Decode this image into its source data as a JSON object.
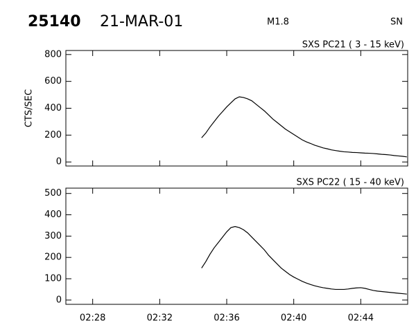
{
  "header": {
    "id": "25140",
    "date": "21-MAR-01",
    "class": "M1.8",
    "station": "SN"
  },
  "chart_data": [
    {
      "type": "line",
      "title": "SXS PC21 ( 3 - 15 keV)",
      "y_label": "CTS/SEC",
      "color": "#000000",
      "xlim": [
        146.4,
        166.8
      ],
      "xticks": [
        148,
        152,
        156,
        160,
        164
      ],
      "ylim": [
        -30,
        830
      ],
      "yticks": [
        0,
        200,
        400,
        600,
        800
      ],
      "x": [
        154.5,
        154.75,
        155,
        155.25,
        155.5,
        155.75,
        156,
        156.25,
        156.5,
        156.75,
        157,
        157.25,
        157.5,
        157.75,
        158,
        158.25,
        158.5,
        158.75,
        159,
        159.25,
        159.5,
        159.75,
        160,
        160.25,
        160.5,
        160.75,
        161,
        161.25,
        161.5,
        161.75,
        162,
        162.25,
        162.5,
        162.75,
        163,
        163.25,
        163.5,
        163.75,
        164,
        164.25,
        164.5,
        164.75,
        165,
        165.25,
        165.5,
        165.75,
        166,
        166.25,
        166.5,
        166.75
      ],
      "values": [
        180,
        215,
        260,
        300,
        340,
        375,
        410,
        440,
        470,
        485,
        480,
        470,
        455,
        430,
        405,
        380,
        350,
        320,
        295,
        270,
        245,
        225,
        205,
        185,
        165,
        150,
        138,
        125,
        115,
        105,
        98,
        90,
        85,
        80,
        76,
        74,
        71,
        70,
        68,
        66,
        65,
        63,
        60,
        57,
        55,
        52,
        48,
        45,
        42,
        38
      ]
    },
    {
      "type": "line",
      "title": "SXS PC22 ( 15 - 40 keV)",
      "color": "#000000",
      "xlim": [
        146.4,
        166.8
      ],
      "xticks": [
        {
          "value": 148,
          "label": "02:28"
        },
        {
          "value": 152,
          "label": "02:32"
        },
        {
          "value": 156,
          "label": "02:36"
        },
        {
          "value": 160,
          "label": "02:40"
        },
        {
          "value": 164,
          "label": "02:44"
        }
      ],
      "ylim": [
        -20,
        525
      ],
      "yticks": [
        0,
        100,
        200,
        300,
        400,
        500
      ],
      "x": [
        154.5,
        154.75,
        155,
        155.25,
        155.5,
        155.75,
        156,
        156.25,
        156.5,
        156.75,
        157,
        157.25,
        157.5,
        157.75,
        158,
        158.25,
        158.5,
        158.75,
        159,
        159.25,
        159.5,
        159.75,
        160,
        160.25,
        160.5,
        160.75,
        161,
        161.25,
        161.5,
        161.75,
        162,
        162.25,
        162.5,
        162.75,
        163,
        163.25,
        163.5,
        163.75,
        164,
        164.25,
        164.5,
        164.75,
        165,
        165.25,
        165.5,
        165.75,
        166,
        166.25,
        166.5,
        166.75
      ],
      "values": [
        150,
        180,
        215,
        245,
        270,
        295,
        320,
        340,
        345,
        340,
        330,
        315,
        295,
        275,
        255,
        235,
        210,
        190,
        170,
        150,
        135,
        120,
        108,
        98,
        88,
        80,
        73,
        67,
        62,
        58,
        55,
        52,
        50,
        50,
        50,
        52,
        55,
        57,
        58,
        55,
        50,
        45,
        42,
        40,
        38,
        36,
        34,
        32,
        30,
        28
      ]
    }
  ]
}
